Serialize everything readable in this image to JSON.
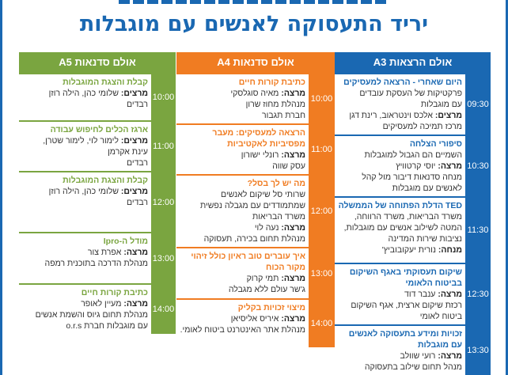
{
  "title": "יריד התעסוקה לאנשים עם מוגבלות",
  "colors": {
    "a3": "#1a68b2",
    "a4": "#f07c22",
    "a5": "#7aa540"
  },
  "columns": [
    {
      "id": "a3",
      "header": "אולם הרצאות A3",
      "sessions": [
        {
          "time": "09:30",
          "title": "היום שאחרי - הרצאה למעסיקים",
          "lines": [
            "פרקטיקות של העסקת עובדים",
            "עם מוגבלות"
          ],
          "role": "מרצים:",
          "speaker": "אלכס וינטראוב, רינת דגן",
          "after": [
            "מרכז תמיכה למעסיקים"
          ]
        },
        {
          "time": "10:30",
          "title": "סיפורי הצלחה",
          "lines": [
            "השמיים הם הגבול למוגבלות"
          ],
          "role": "מרצה:",
          "speaker": "יוסי קרטוויץ",
          "after": [
            "מנחה סדנאות דיבור מול קהל",
            "לאנשים עם מוגבלות"
          ]
        },
        {
          "time": "11:30",
          "title": "TED הדלת הפתוחה של הממשלה",
          "lines": [
            "משרד הבריאות, משרד הרווחה,",
            "המטה לשילוב אנשים עם מוגבלות,",
            "נציבות שירות המדינה"
          ],
          "role": "מנחה:",
          "speaker": "נורית יעקובוביץ'",
          "after": []
        },
        {
          "time": "12:30",
          "title": "שיקום תעסוקתי באגף השיקום בביטוח הלאומי",
          "lines": [],
          "role": "מרצה:",
          "speaker": "ענבר דוד",
          "after": [
            "רכזת שיקום ארצית, אגף השיקום",
            "ביטוח לאומי"
          ]
        },
        {
          "time": "13:30",
          "title": "זכויות ומידע בתעסוקה לאנשים עם מוגבלות",
          "lines": [],
          "role": "מרצה:",
          "speaker": "רועי שוולב",
          "after": [
            "מנהל תחום שילוב בתעסוקה"
          ]
        }
      ]
    },
    {
      "id": "a4",
      "header": "אולם סדנאות A4",
      "sessions": [
        {
          "time": "10:00",
          "title": "כתיבת קורות חיים",
          "lines": [],
          "role": "מרצה:",
          "speaker": "מאיה סוגלסקי",
          "after": [
            "מנהלת מחוז שרון",
            "חברת תגבור"
          ]
        },
        {
          "time": "11:00",
          "title": "הרצאה למעסיקים: מעבר מפסיביות לאקטיביות",
          "lines": [],
          "role": "מרצה:",
          "speaker": "רונלי ישורון",
          "after": [
            "עסק שווה"
          ]
        },
        {
          "time": "12:00",
          "title": "מה יש לך בסל?",
          "lines": [
            "שרותי סל שיקום לאנשים",
            "שמתמודדים עם מגבלה נפשית",
            "משרד הבריאות"
          ],
          "role": "מרצה:",
          "speaker": "נעה לוי",
          "after": [
            "מנהלת תחום בכירה, תעסוקה"
          ]
        },
        {
          "time": "13:00",
          "title": "איך עוברים טוב ראיון כולל זיהוי מקור הכוח",
          "lines": [],
          "role": "מרצה:",
          "speaker": "תמי קרוק",
          "after": [
            "ג'שר עולם ללא מגבלה"
          ]
        },
        {
          "time": "14:00",
          "title": "מיצוי זכויות בקליק",
          "lines": [],
          "role": "מרצה:",
          "speaker": "איריס אליסיאן",
          "after": [
            "מנהלת אתר האינטרנט ביטוח לאומי."
          ]
        }
      ]
    },
    {
      "id": "a5",
      "header": "אולם סדנאות A5",
      "sessions": [
        {
          "time": "10:00",
          "title": "קבלת והצגת המוגבלות",
          "lines": [],
          "role": "מרצים:",
          "speaker": "שלומי כהן, הילה רוזן",
          "after": [
            "רבדים"
          ]
        },
        {
          "time": "11:00",
          "title": "ארגז הכלים לחיפוש עבודה",
          "lines": [],
          "role": "מרצים:",
          "speaker": "לימור לוי, לימור שטרן,",
          "after": [
            "עינת אקרמן",
            "רבדים"
          ]
        },
        {
          "time": "12:00",
          "title": "קבלת והצגת המוגבלות",
          "lines": [],
          "role": "מרצים:",
          "speaker": "שלומי כהן, הילה רוזן",
          "after": [
            "רבדים"
          ]
        },
        {
          "time": "13:00",
          "title": "מודל ה-Ipro",
          "lines": [],
          "role": "מרצה:",
          "speaker": "אפרת צור",
          "after": [
            "מנהלת הדרכה בתוכנית רמפה"
          ]
        },
        {
          "time": "14:00",
          "title": "כתיבת קורות חיים",
          "lines": [],
          "role": "מרצה:",
          "speaker": "מעיין לאופר",
          "after": [
            "מנהלת תחום גיוס והשמת אנשים",
            "עם מוגבלות חברת o.r.s"
          ]
        }
      ]
    }
  ]
}
